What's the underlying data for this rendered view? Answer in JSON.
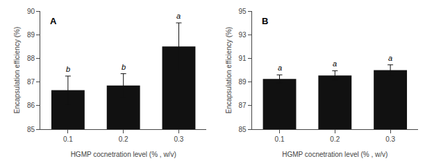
{
  "chart_data": [
    {
      "type": "bar",
      "title": "A",
      "categories": [
        "0.1",
        "0.2",
        "0.3"
      ],
      "values": [
        86.65,
        86.85,
        88.5
      ],
      "errors": [
        0.6,
        0.5,
        1.0
      ],
      "annotations": [
        "b",
        "b",
        "a"
      ],
      "xlabel": "HGMP cocnetration level (% , w/v)",
      "ylabel": "Encapsulation efficiency (%)",
      "ylim": [
        85,
        90
      ],
      "yticks": [
        85,
        86,
        87,
        88,
        89,
        90
      ],
      "color": "#111111",
      "grid": false
    },
    {
      "type": "bar",
      "title": "B",
      "categories": [
        "0.1",
        "0.2",
        "0.3"
      ],
      "values": [
        89.25,
        89.55,
        90.0
      ],
      "errors": [
        0.35,
        0.4,
        0.45
      ],
      "annotations": [
        "a",
        "a",
        "a"
      ],
      "xlabel": "HGMP cocnetration level (% , w/v)",
      "ylabel": "Encapsulation efficiency (%)",
      "ylim": [
        85,
        95
      ],
      "yticks": [
        85,
        87,
        89,
        91,
        93,
        95
      ],
      "color": "#111111",
      "grid": false
    }
  ]
}
